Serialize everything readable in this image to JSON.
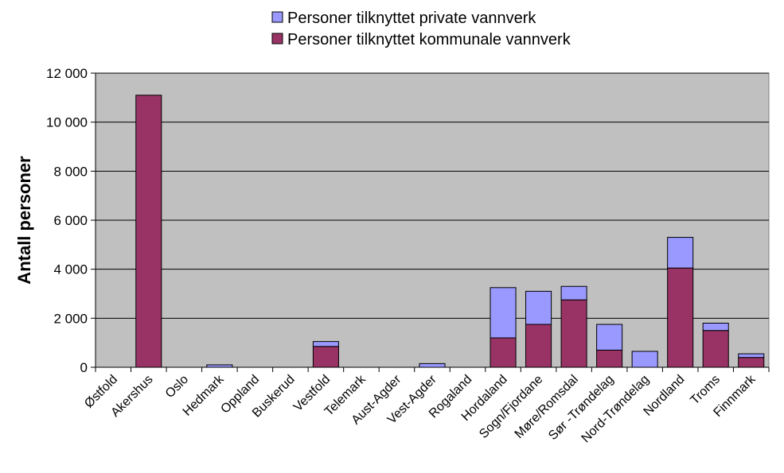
{
  "chart_data": {
    "type": "bar",
    "stacked": true,
    "ylabel": "Antall personer",
    "xlabel": "",
    "ylim": [
      0,
      12000
    ],
    "yticks": [
      0,
      2000,
      4000,
      6000,
      8000,
      10000,
      12000
    ],
    "ytick_labels": [
      "0",
      "2 000",
      "4 000",
      "6 000",
      "8 000",
      "10 000",
      "12 000"
    ],
    "grid": true,
    "legend_position": "top",
    "categories": [
      "Østfold",
      "Akershus",
      "Oslo",
      "Hedmark",
      "Oppland",
      "Buskerud",
      "Vestfold",
      "Telemark",
      "Aust-Agder",
      "Vest-Agder",
      "Rogaland",
      "Hordaland",
      "Sogn/Fjordane",
      "Møre/Romsdal",
      "Sør -Trøndelag",
      "Nord-Trøndelag",
      "Nordland",
      "Troms",
      "Finnmark"
    ],
    "series": [
      {
        "name": "Personer tilknyttet kommunale vannverk",
        "color": "#993366",
        "values": [
          0,
          11100,
          0,
          0,
          0,
          0,
          850,
          0,
          0,
          0,
          0,
          1200,
          1750,
          2750,
          700,
          0,
          4050,
          1500,
          400
        ]
      },
      {
        "name": "Personer tilknyttet private vannverk",
        "color": "#9999ff",
        "values": [
          0,
          0,
          0,
          100,
          0,
          0,
          200,
          0,
          0,
          150,
          0,
          2050,
          1350,
          550,
          1050,
          650,
          1250,
          300,
          150
        ]
      }
    ],
    "legend_order": [
      1,
      0
    ],
    "plot_background": "#c0c0c0"
  }
}
